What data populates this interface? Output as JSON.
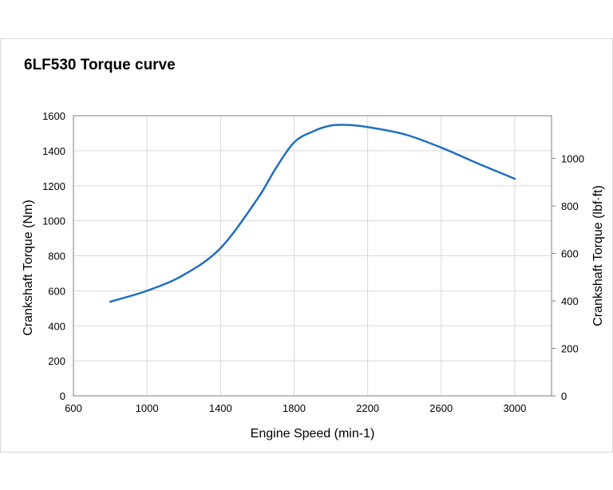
{
  "chart_data": {
    "type": "line",
    "title": "6LF530 Torque curve",
    "xlabel": "Engine Speed (min-1)",
    "ylabel": "Crankshaft Torque (Nm)",
    "y2label": "Crankshaft Torque (lbf·ft)",
    "xlim": [
      600,
      3200
    ],
    "ylim": [
      0,
      1600
    ],
    "y2lim": [
      0,
      1180
    ],
    "xticks": [
      600,
      1000,
      1400,
      1800,
      2200,
      2600,
      3000
    ],
    "yticks": [
      0,
      200,
      400,
      600,
      800,
      1000,
      1200,
      1400,
      1600
    ],
    "y2ticks": [
      0,
      200,
      400,
      600,
      800,
      1000
    ],
    "grid": true,
    "color": "#1f6fbf",
    "series": [
      {
        "x": [
          800,
          1000,
          1200,
          1400,
          1600,
          1700,
          1800,
          1900,
          2000,
          2100,
          2200,
          2400,
          2600,
          2800,
          3000
        ],
        "y": [
          538,
          600,
          691,
          844,
          1124,
          1299,
          1448,
          1509,
          1544,
          1547,
          1535,
          1494,
          1418,
          1327,
          1240
        ]
      }
    ]
  }
}
